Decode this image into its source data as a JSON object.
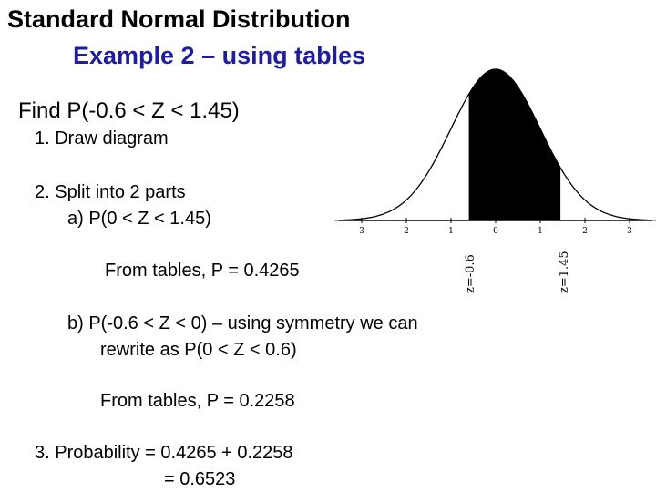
{
  "title": "Standard Normal Distribution",
  "subtitle": "Example 2 – using tables",
  "problem": "Find P(-0.6 < Z < 1.45)",
  "steps": {
    "s1": "1.  Draw diagram",
    "s2": "2.  Split into 2 parts",
    "s2a": "a)  P(0 < Z < 1.45)",
    "from_tables_1": "From tables, P = 0.4265",
    "s2b_line1": "b)  P(-0.6 < Z < 0) – using symmetry we can",
    "s2b_line2": "rewrite as  P(0 < Z < 0.6)",
    "from_tables_2": "From tables, P = 0.2258",
    "s3_line1": "3.  Probability = 0.4265 + 0.2258",
    "s3_line2": "= 0.6523"
  },
  "diagram": {
    "shade_from": -0.6,
    "shade_to": 1.45,
    "axis_ticks": [
      "3",
      "2",
      "1",
      "0",
      "1",
      "2",
      "3"
    ],
    "left_marker": "z=-0.6",
    "right_marker": "z=1.45",
    "fill_color": "#000000"
  }
}
